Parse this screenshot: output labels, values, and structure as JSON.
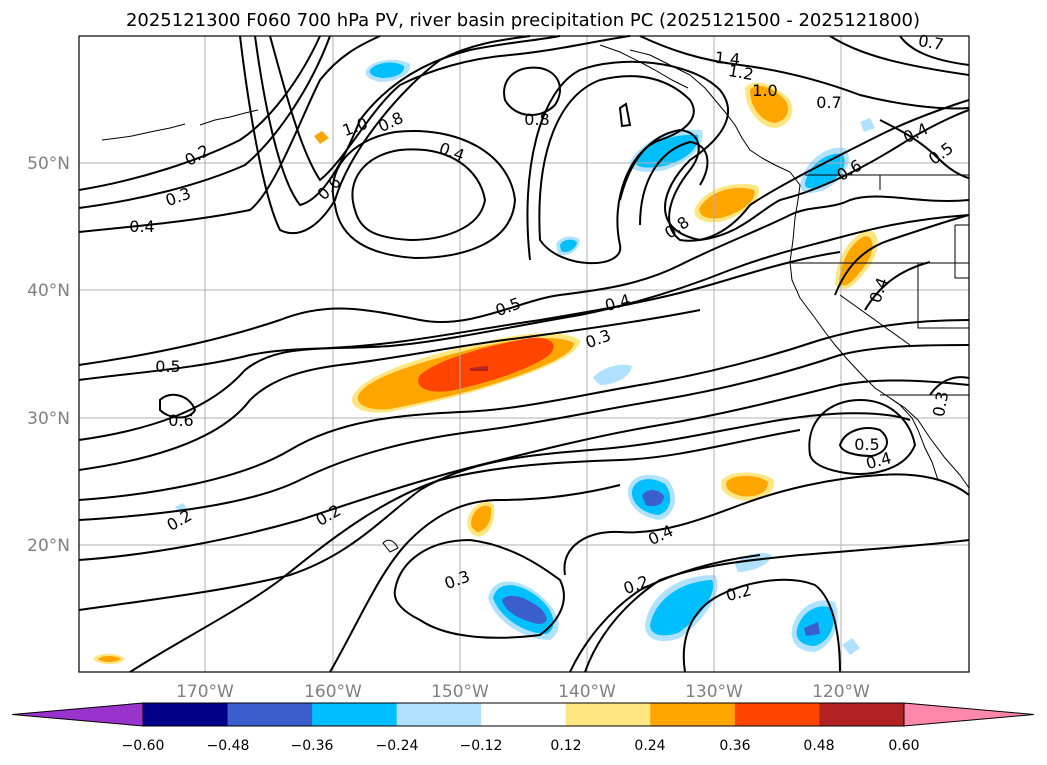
{
  "title": "2025121300 F060 700 hPa PV, river basin precipitation PC (2025121500 - 2025121800)",
  "lat_labels": [
    "50°N",
    "40°N",
    "30°N",
    "20°N"
  ],
  "lon_labels": [
    "170°W",
    "160°W",
    "150°W",
    "140°W",
    "130°W",
    "120°W"
  ],
  "contour_labels": [
    "0.2",
    "0.3",
    "0.4",
    "1.0",
    "0.8",
    "0.6",
    "0.4",
    "0.8",
    "1.4",
    "1.2",
    "1.0",
    "0.7",
    "0.4",
    "0.5",
    "0.6",
    "0.8",
    "0.5",
    "0.4",
    "0.3",
    "0.4",
    "0.5",
    "0.6",
    "0.2",
    "0.2",
    "0.3",
    "0.4",
    "0.2",
    "0.2",
    "0.5",
    "0.4",
    "0.3",
    "0.7"
  ],
  "colorbar": {
    "ticks": [
      "−0.60",
      "−0.48",
      "−0.36",
      "−0.24",
      "−0.12",
      "0.12",
      "0.24",
      "0.36",
      "0.48",
      "0.60"
    ],
    "colors": [
      "#9933cc",
      "#00008b",
      "#3a5fcd",
      "#00bfff",
      "#b0e2ff",
      "#ffffff",
      "#ffe680",
      "#ffa500",
      "#ff4500",
      "#b22222",
      "#ff88aa"
    ]
  }
}
